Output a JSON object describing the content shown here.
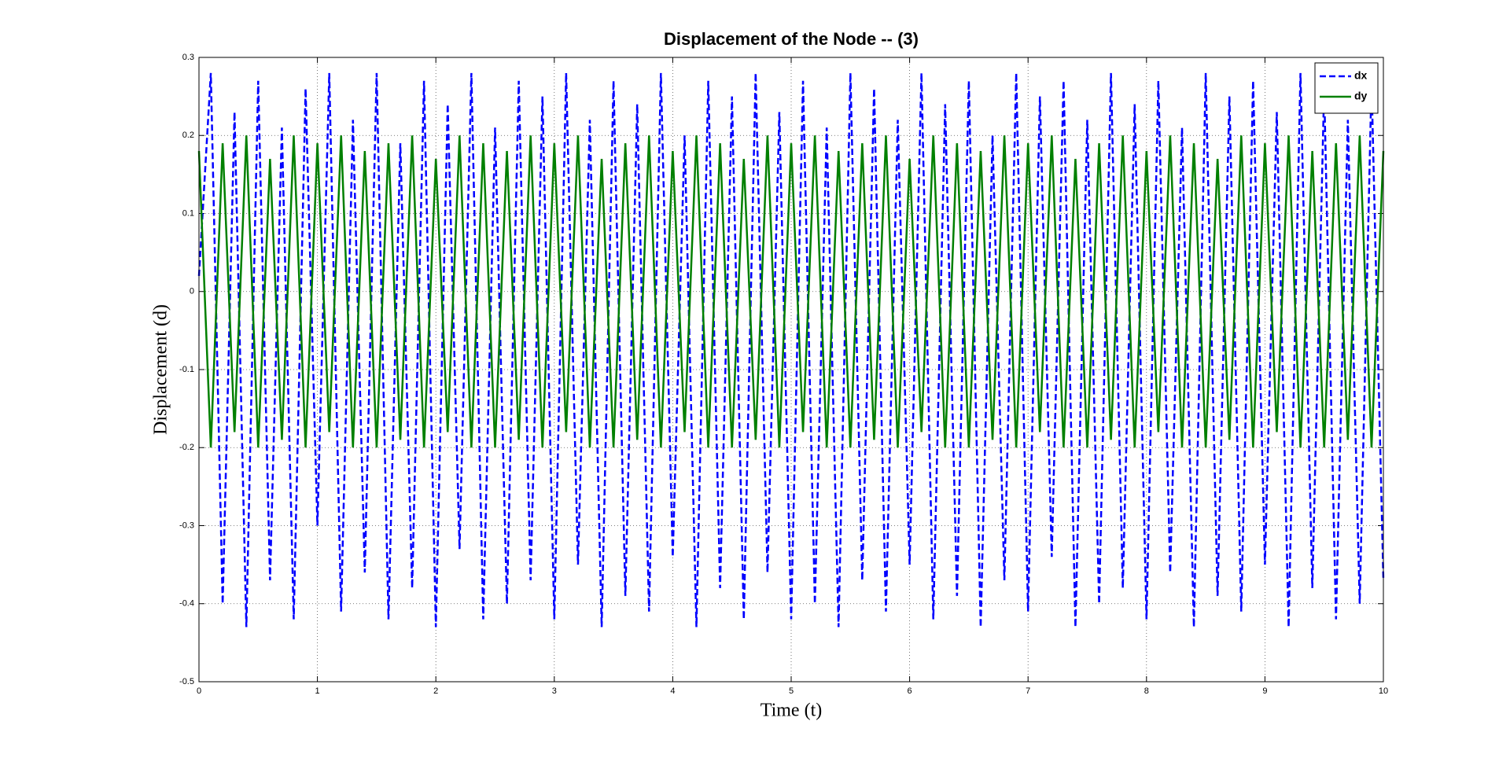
{
  "chart_data": {
    "type": "line",
    "title": "Displacement of the Node -- (3)",
    "x_label": "Time (t)",
    "y_label": "Displacement (d)",
    "x": [
      0,
      0.1,
      0.2,
      0.3,
      0.4,
      0.5,
      0.6,
      0.7,
      0.8,
      0.9,
      1,
      1.1,
      1.2,
      1.3,
      1.4,
      1.5,
      1.6,
      1.7,
      1.8,
      1.9,
      2,
      2.1,
      2.2,
      2.3,
      2.4,
      2.5,
      2.6,
      2.7,
      2.8,
      2.9,
      3,
      3.1,
      3.2,
      3.3,
      3.4,
      3.5,
      3.6,
      3.7,
      3.8,
      3.9,
      4,
      4.1,
      4.2,
      4.3,
      4.4,
      4.5,
      4.6,
      4.7,
      4.8,
      4.9,
      5,
      5.1,
      5.2,
      5.3,
      5.4,
      5.5,
      5.6,
      5.7,
      5.8,
      5.9,
      6,
      6.1,
      6.2,
      6.3,
      6.4,
      6.5,
      6.6,
      6.7,
      6.8,
      6.9,
      7,
      7.1,
      7.2,
      7.3,
      7.4,
      7.5,
      7.6,
      7.7,
      7.8,
      7.9,
      8,
      8.1,
      8.2,
      8.3,
      8.4,
      8.5,
      8.6,
      8.7,
      8.8,
      8.9,
      9,
      9.1,
      9.2,
      9.3,
      9.4,
      9.5,
      9.6,
      9.7,
      9.8,
      9.9,
      10
    ],
    "series": [
      {
        "name": "dx",
        "color": "#0000ff",
        "dash": true,
        "values": [
          0.02,
          0.28,
          -0.4,
          0.23,
          -0.43,
          0.27,
          -0.37,
          0.21,
          -0.42,
          0.26,
          -0.3,
          0.28,
          -0.41,
          0.22,
          -0.36,
          0.28,
          -0.42,
          0.19,
          -0.38,
          0.27,
          -0.43,
          0.24,
          -0.33,
          0.28,
          -0.42,
          0.21,
          -0.4,
          0.27,
          -0.37,
          0.25,
          -0.42,
          0.28,
          -0.35,
          0.22,
          -0.43,
          0.27,
          -0.39,
          0.24,
          -0.41,
          0.28,
          -0.34,
          0.2,
          -0.43,
          0.27,
          -0.38,
          0.25,
          -0.42,
          0.28,
          -0.36,
          0.23,
          -0.42,
          0.27,
          -0.4,
          0.21,
          -0.43,
          0.28,
          -0.37,
          0.26,
          -0.41,
          0.22,
          -0.35,
          0.28,
          -0.42,
          0.24,
          -0.39,
          0.27,
          -0.43,
          0.2,
          -0.37,
          0.28,
          -0.41,
          0.25,
          -0.34,
          0.27,
          -0.43,
          0.22,
          -0.4,
          0.28,
          -0.38,
          0.24,
          -0.42,
          0.27,
          -0.36,
          0.21,
          -0.43,
          0.28,
          -0.39,
          0.25,
          -0.41,
          0.27,
          -0.35,
          0.23,
          -0.43,
          0.28,
          -0.38,
          0.26,
          -0.42,
          0.22,
          -0.4,
          0.27,
          -0.37
        ]
      },
      {
        "name": "dy",
        "color": "#008000",
        "dash": false,
        "values": [
          0.18,
          -0.2,
          0.19,
          -0.18,
          0.2,
          -0.2,
          0.17,
          -0.19,
          0.2,
          -0.2,
          0.19,
          -0.18,
          0.2,
          -0.2,
          0.18,
          -0.2,
          0.19,
          -0.19,
          0.2,
          -0.2,
          0.17,
          -0.18,
          0.2,
          -0.2,
          0.19,
          -0.2,
          0.18,
          -0.19,
          0.2,
          -0.2,
          0.19,
          -0.18,
          0.2,
          -0.2,
          0.17,
          -0.2,
          0.19,
          -0.19,
          0.2,
          -0.2,
          0.18,
          -0.18,
          0.2,
          -0.2,
          0.19,
          -0.2,
          0.17,
          -0.19,
          0.2,
          -0.2,
          0.19,
          -0.18,
          0.2,
          -0.2,
          0.18,
          -0.2,
          0.19,
          -0.19,
          0.2,
          -0.2,
          0.17,
          -0.18,
          0.2,
          -0.2,
          0.19,
          -0.2,
          0.18,
          -0.19,
          0.2,
          -0.2,
          0.19,
          -0.18,
          0.2,
          -0.2,
          0.17,
          -0.2,
          0.19,
          -0.19,
          0.2,
          -0.2,
          0.18,
          -0.18,
          0.2,
          -0.2,
          0.19,
          -0.2,
          0.17,
          -0.19,
          0.2,
          -0.2,
          0.19,
          -0.18,
          0.2,
          -0.2,
          0.18,
          -0.2,
          0.19,
          -0.19,
          0.2,
          -0.2,
          0.18
        ]
      }
    ],
    "xlim": [
      0,
      10
    ],
    "xticks": [
      0,
      1,
      2,
      3,
      4,
      5,
      6,
      7,
      8,
      9,
      10
    ],
    "ylim": [
      -0.5,
      0.3
    ],
    "yticks": [
      -0.5,
      -0.4,
      -0.3,
      -0.2,
      -0.1,
      0,
      0.1,
      0.2,
      0.3
    ],
    "grid": true,
    "legend": "upper right"
  }
}
